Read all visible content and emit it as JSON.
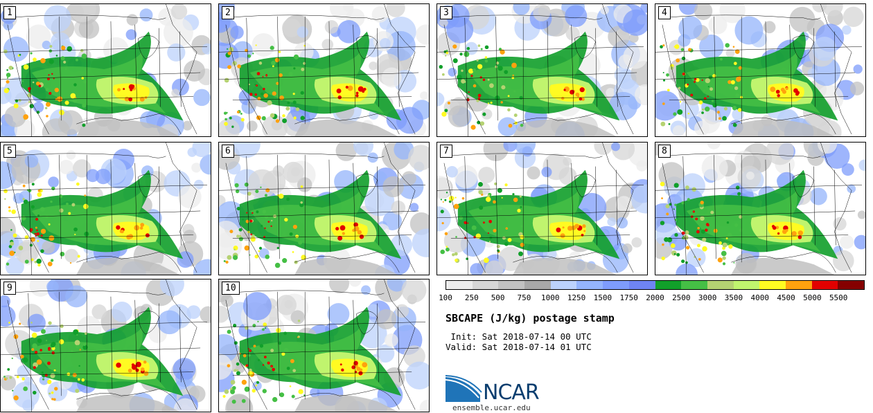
{
  "panels": [
    {
      "label": "1"
    },
    {
      "label": "2"
    },
    {
      "label": "3"
    },
    {
      "label": "4"
    },
    {
      "label": "5"
    },
    {
      "label": "6"
    },
    {
      "label": "7"
    },
    {
      "label": "8"
    },
    {
      "label": "9"
    },
    {
      "label": "10"
    }
  ],
  "legend": {
    "colors": [
      "#ececec",
      "#d6d6d6",
      "#c2c2c2",
      "#a8a8a8",
      "#bcd2fb",
      "#94b4fb",
      "#7e9cfb",
      "#6f84f3",
      "#119f2a",
      "#45bf45",
      "#b5d272",
      "#c0f46e",
      "#fffb22",
      "#ffa20e",
      "#e20000",
      "#850000"
    ],
    "ticks": [
      "100",
      "250",
      "500",
      "750",
      "1000",
      "1250",
      "1500",
      "1750",
      "2000",
      "2500",
      "3000",
      "3500",
      "4000",
      "4500",
      "5000",
      "5500"
    ]
  },
  "title": "SBCAPE (J/kg) postage stamp",
  "init": " Init: Sat 2018-07-14 00 UTC",
  "valid": "Valid: Sat 2018-07-14 01 UTC",
  "logo": {
    "name": "NCAR",
    "url_text": "ensemble.ucar.edu"
  }
}
